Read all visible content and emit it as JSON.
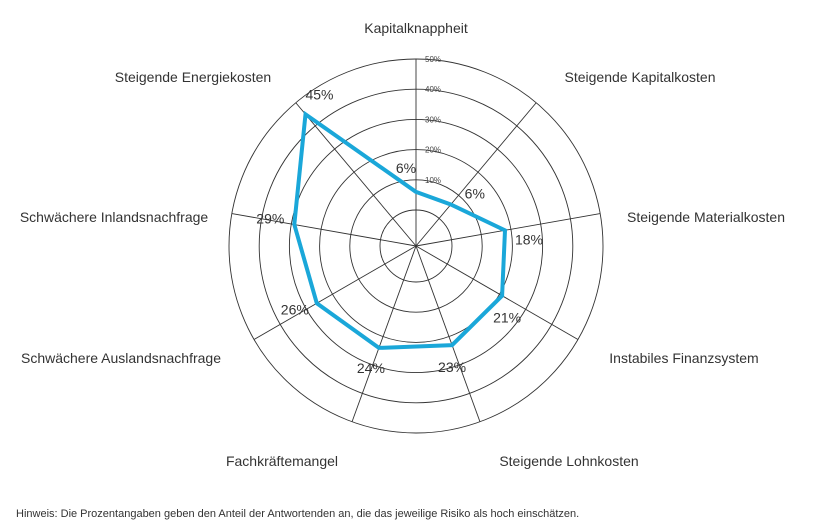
{
  "chart_data": {
    "type": "radar",
    "title": "",
    "categories": [
      "Kapitalknappheit",
      "Steigende Kapitalkosten",
      "Steigende Materialkosten",
      "Instabiles Finanzsystem",
      "Steigende Lohnkosten",
      "Fachkräftemangel",
      "Schwächere Auslandsnachfrage",
      "Schwächere Inlandsnachfrage",
      "Steigende Energiekosten"
    ],
    "values": [
      6,
      6,
      18,
      21,
      23,
      24,
      26,
      29,
      45
    ],
    "value_labels": [
      "6%",
      "6%",
      "18%",
      "21%",
      "23%",
      "24%",
      "26%",
      "29%",
      "45%"
    ],
    "rlim": [
      0,
      50
    ],
    "ticks": [
      10,
      20,
      30,
      40,
      50
    ],
    "tick_labels": [
      "10%",
      "20%",
      "30%",
      "40%",
      "50%"
    ],
    "grid": true,
    "series_color": "#1aa7d9",
    "grid_color": "#333333"
  },
  "note": "Hinweis: Die Prozentangaben geben den Anteil der Antwortenden an, die das jeweilige Risiko als hoch einschätzen."
}
